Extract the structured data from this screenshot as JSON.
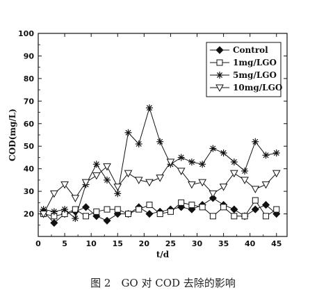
{
  "chart_data": {
    "type": "line",
    "xlabel": "t/d",
    "ylabel": "COD(mg/L)",
    "xlim": [
      0,
      47
    ],
    "ylim": [
      10,
      100
    ],
    "xticks": [
      0,
      5,
      10,
      15,
      20,
      25,
      30,
      35,
      40,
      45
    ],
    "yticks": [
      20,
      30,
      40,
      50,
      60,
      70,
      80,
      90,
      100
    ],
    "grid": false,
    "legend_position": "top-right",
    "series": [
      {
        "name": "Control",
        "marker": "filled-diamond",
        "x": [
          1,
          3,
          5,
          7,
          9,
          11,
          13,
          15,
          17,
          19,
          21,
          23,
          25,
          27,
          29,
          31,
          33,
          35,
          37,
          39,
          41,
          43,
          45
        ],
        "y": [
          21,
          16,
          20,
          21,
          23,
          19,
          17,
          20,
          20,
          23,
          20,
          21,
          22,
          23,
          22,
          24,
          27,
          24,
          22,
          19,
          22,
          24,
          20
        ]
      },
      {
        "name": "1mg/LGO",
        "marker": "open-square",
        "x": [
          1,
          3,
          5,
          7,
          9,
          11,
          13,
          15,
          17,
          19,
          21,
          23,
          25,
          27,
          29,
          31,
          33,
          35,
          37,
          39,
          41,
          43,
          45
        ],
        "y": [
          20,
          19,
          20,
          22,
          19,
          21,
          22,
          22,
          20,
          22,
          24,
          20,
          21,
          25,
          24,
          23,
          19,
          23,
          19,
          19,
          26,
          19,
          22
        ]
      },
      {
        "name": "5mg/LGO",
        "marker": "asterisk",
        "x": [
          1,
          3,
          5,
          7,
          9,
          11,
          13,
          15,
          17,
          19,
          21,
          23,
          25,
          27,
          29,
          31,
          33,
          35,
          37,
          39,
          41,
          43,
          45
        ],
        "y": [
          22,
          21,
          22,
          18,
          33,
          42,
          35,
          29,
          56,
          51,
          67,
          52,
          42,
          45,
          43,
          42,
          49,
          47,
          43,
          39,
          52,
          46,
          47
        ]
      },
      {
        "name": "10mg/LGO",
        "marker": "open-triangle-down",
        "x": [
          1,
          3,
          5,
          7,
          9,
          11,
          13,
          15,
          17,
          19,
          21,
          23,
          25,
          27,
          29,
          31,
          33,
          35,
          37,
          39,
          41,
          43,
          45
        ],
        "y": [
          20,
          29,
          33,
          27,
          34,
          37,
          41,
          32,
          38,
          35,
          34,
          36,
          43,
          39,
          33,
          34,
          29,
          32,
          38,
          35,
          31,
          33,
          38
        ]
      }
    ]
  },
  "caption": "图 2　GO 对 COD 去除的影响"
}
